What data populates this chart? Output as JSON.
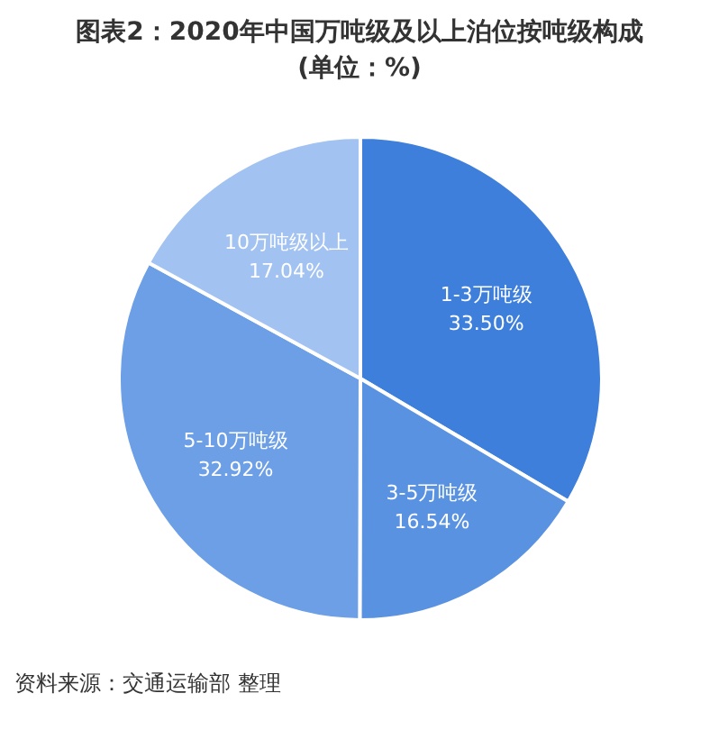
{
  "chart_data": {
    "type": "pie",
    "title": "图表2：2020年中国万吨级及以上泊位按吨级构成",
    "subtitle": "(单位：%)",
    "categories": [
      "1-3万吨级",
      "3-5万吨级",
      "5-10万吨级",
      "10万吨级以上"
    ],
    "values": [
      33.5,
      16.54,
      32.92,
      17.04
    ],
    "value_labels": [
      "33.50%",
      "16.54%",
      "32.92%",
      "17.04%"
    ],
    "colors": [
      "#3d7fdb",
      "#5a92e2",
      "#6c9fe6",
      "#a2c2f1"
    ],
    "annotations": [
      "资料来源：交通运输部 整理"
    ]
  }
}
